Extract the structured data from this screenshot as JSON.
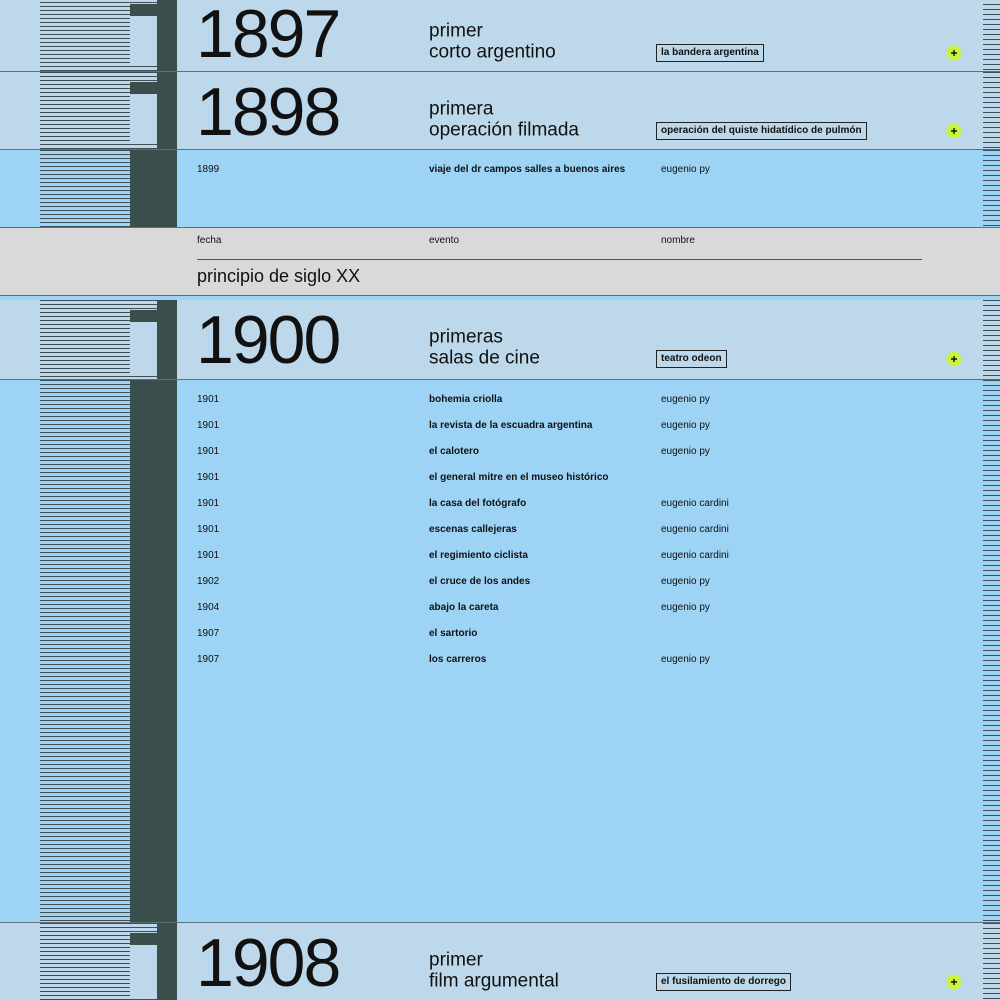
{
  "sections": [
    {
      "kind": "milestone",
      "year": "1897",
      "title": [
        "primer",
        "corto argentino"
      ],
      "tag": "la bandera argentina"
    },
    {
      "kind": "milestone",
      "year": "1898",
      "title": [
        "primera",
        "operación filmada"
      ],
      "tag": "operación del quiste hidatídico de pulmón"
    },
    {
      "kind": "rows",
      "rows": [
        {
          "date": "1899",
          "event": "viaje del dr campos salles a buenos aires",
          "name": "eugenio py"
        }
      ]
    },
    {
      "kind": "header",
      "columns": [
        "fecha",
        "evento",
        "nombre"
      ],
      "title": "principio de siglo XX"
    },
    {
      "kind": "milestone",
      "year": "1900",
      "title": [
        "primeras",
        "salas de cine"
      ],
      "tag": "teatro odeon"
    },
    {
      "kind": "rows",
      "rows": [
        {
          "date": "1901",
          "event": "bohemia criolla",
          "name": "eugenio py"
        },
        {
          "date": "1901",
          "event": "la revista de la escuadra argentina",
          "name": "eugenio py"
        },
        {
          "date": "1901",
          "event": "el calotero",
          "name": "eugenio py"
        },
        {
          "date": "1901",
          "event": "el general mitre en el museo histórico"
        },
        {
          "date": "1901",
          "event": "la casa del fotógrafo",
          "name": "eugenio cardini"
        },
        {
          "date": "1901",
          "event": "escenas callejeras",
          "name": "eugenio cardini"
        },
        {
          "date": "1901",
          "event": "el regimiento ciclista",
          "name": "eugenio cardini"
        },
        {
          "date": "1902",
          "event": "el cruce de los andes",
          "name": "eugenio py"
        },
        {
          "date": "1904",
          "event": "abajo la careta",
          "name": "eugenio py"
        },
        {
          "date": "1907",
          "event": "el sartorio"
        },
        {
          "date": "1907",
          "event": "los carreros",
          "name": "eugenio py"
        }
      ]
    },
    {
      "kind": "milestone",
      "year": "1908",
      "title": [
        "primer",
        "film argumental"
      ],
      "tag": "el fusilamiento de dorrego"
    }
  ]
}
